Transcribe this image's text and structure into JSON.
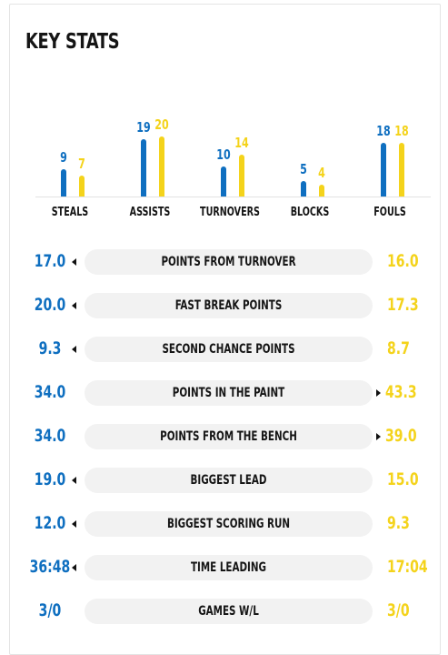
{
  "title": "KEY STATS",
  "chart_data": {
    "type": "bar",
    "categories": [
      "STEALS",
      "ASSISTS",
      "TURNOVERS",
      "BLOCKS",
      "FOULS"
    ],
    "series": [
      {
        "values": [
          9,
          19,
          10,
          5,
          18
        ]
      },
      {
        "values": [
          7,
          20,
          14,
          4,
          18
        ]
      }
    ],
    "colors": [
      "#0f6fc0",
      "#f4d31b"
    ]
  },
  "stats": [
    {
      "label": "POINTS FROM TURNOVER",
      "left": "17.0",
      "right": "16.0",
      "leader": "left"
    },
    {
      "label": "FAST BREAK POINTS",
      "left": "20.0",
      "right": "17.3",
      "leader": "left"
    },
    {
      "label": "SECOND CHANCE POINTS",
      "left": "9.3",
      "right": "8.7",
      "leader": "left"
    },
    {
      "label": "POINTS IN THE PAINT",
      "left": "34.0",
      "right": "43.3",
      "leader": "right"
    },
    {
      "label": "POINTS FROM THE BENCH",
      "left": "34.0",
      "right": "39.0",
      "leader": "right"
    },
    {
      "label": "BIGGEST LEAD",
      "left": "19.0",
      "right": "15.0",
      "leader": "left"
    },
    {
      "label": "BIGGEST SCORING RUN",
      "left": "12.0",
      "right": "9.3",
      "leader": "left"
    },
    {
      "label": "TIME LEADING",
      "left": "36:48",
      "right": "17:04",
      "leader": "left"
    },
    {
      "label": "GAMES W/L",
      "left": "3/0",
      "right": "3/0",
      "leader": "none"
    }
  ],
  "colors": {
    "team_a": "#0f6fc0",
    "team_b": "#f4d31b"
  }
}
